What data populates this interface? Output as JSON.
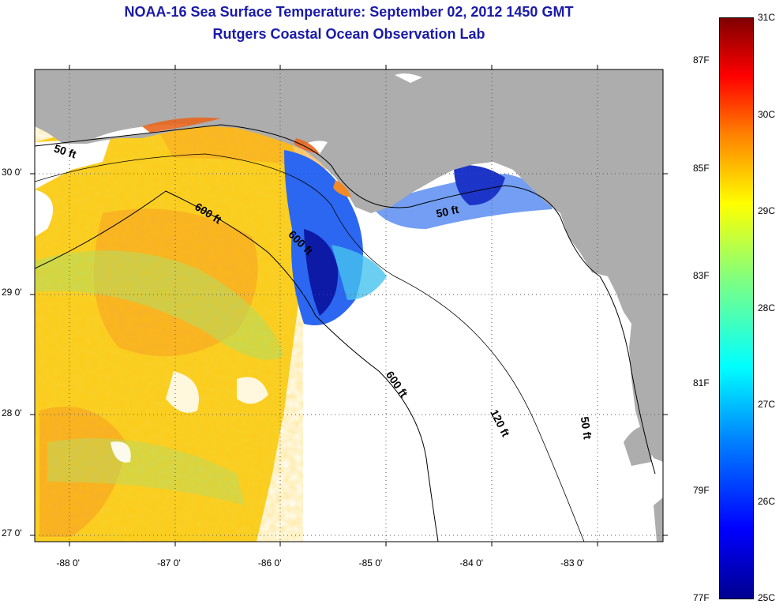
{
  "title": {
    "line1": "NOAA-16 Sea Surface Temperature:  September 02, 2012 1450 GMT",
    "line2": "Rutgers Coastal Ocean Observation Lab"
  },
  "map": {
    "lon_ticks": [
      {
        "value": -88,
        "label": "-88 0'"
      },
      {
        "value": -87,
        "label": "-87 0'"
      },
      {
        "value": -86,
        "label": "-86 0'"
      },
      {
        "value": -85,
        "label": "-85 0'"
      },
      {
        "value": -84,
        "label": "-84 0'"
      },
      {
        "value": -83,
        "label": "-83 0'"
      }
    ],
    "lat_ticks": [
      {
        "value": 30,
        "label": "30 0'"
      },
      {
        "value": 29,
        "label": "29 0'"
      },
      {
        "value": 28,
        "label": "28 0'"
      },
      {
        "value": 27,
        "label": "27 0'"
      }
    ],
    "lon_range": [
      -88.33,
      -82.1
    ],
    "lat_range": [
      26.93,
      30.85
    ],
    "contour_labels": [
      {
        "text": "50 ft",
        "lon": -88.04,
        "lat": 30.14,
        "angle": 18
      },
      {
        "text": "600 ft",
        "lon": -86.63,
        "lat": 29.63,
        "angle": 32
      },
      {
        "text": "600 ft",
        "lon": -85.72,
        "lat": 29.39,
        "angle": 45
      },
      {
        "text": "50 ft",
        "lon": -84.23,
        "lat": 29.64,
        "angle": -12
      },
      {
        "text": "600 ft",
        "lon": -84.77,
        "lat": 28.22,
        "angle": 55
      },
      {
        "text": "120 ft",
        "lon": -83.75,
        "lat": 27.9,
        "angle": 63
      },
      {
        "text": "50 ft",
        "lon": -82.9,
        "lat": 27.87,
        "angle": 82
      }
    ],
    "colors": {
      "land": "#adadad",
      "frame": "#000000"
    }
  },
  "colorbar": {
    "celsius_labels": [
      {
        "value": 31,
        "label": "31C"
      },
      {
        "value": 30,
        "label": "30C"
      },
      {
        "value": 29,
        "label": "29C"
      },
      {
        "value": 28,
        "label": "28C"
      },
      {
        "value": 27,
        "label": "27C"
      },
      {
        "value": 26,
        "label": "26C"
      },
      {
        "value": 25,
        "label": "25C"
      }
    ],
    "fahrenheit_labels": [
      {
        "value": 87,
        "label": "87F"
      },
      {
        "value": 85,
        "label": "85F"
      },
      {
        "value": 83,
        "label": "83F"
      },
      {
        "value": 81,
        "label": "81F"
      },
      {
        "value": 79,
        "label": "79F"
      },
      {
        "value": 77,
        "label": "77F"
      }
    ],
    "range_c": [
      25,
      31
    ]
  }
}
